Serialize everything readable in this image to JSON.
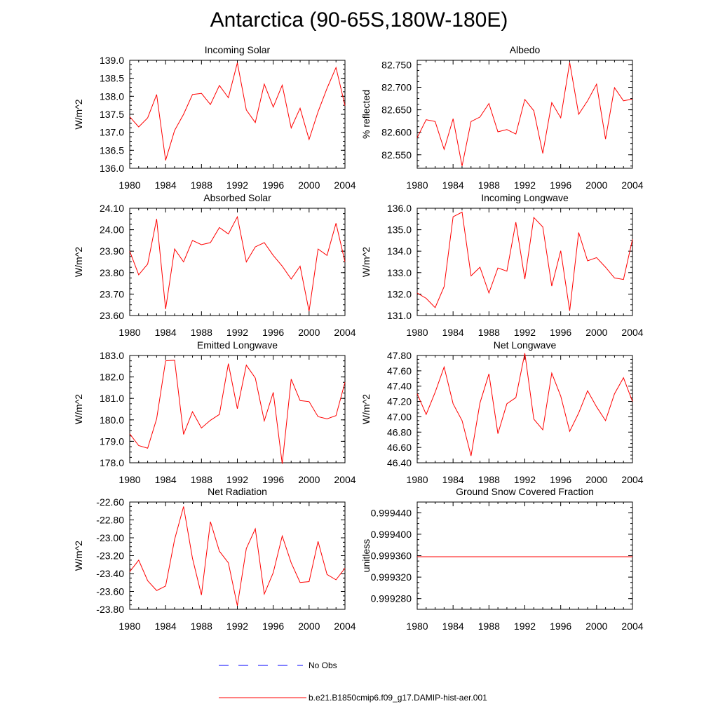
{
  "title": "Antarctica (90-65S,180W-180E)",
  "colors": {
    "model": "#ff0000",
    "obs": "#0000ff",
    "axis": "#000000"
  },
  "legend": {
    "obs_label": "No Obs",
    "model_label": "b.e21.B1850cmip6.f09_g17.DAMIP-hist-aer.001"
  },
  "chart_data": [
    {
      "type": "line",
      "title": "Incoming Solar",
      "xlabel": "",
      "ylabel": "W/m^2",
      "xlim": [
        1980,
        2004
      ],
      "ylim": [
        136.0,
        139.0
      ],
      "xticks": [
        1980,
        1984,
        1988,
        1992,
        1996,
        2000,
        2004
      ],
      "yticks": [
        136.0,
        136.5,
        137.0,
        137.5,
        138.0,
        138.5,
        139.0
      ],
      "ydec": 1,
      "x": [
        1980,
        1981,
        1982,
        1983,
        1984,
        1985,
        1986,
        1987,
        1988,
        1989,
        1990,
        1991,
        1992,
        1993,
        1994,
        1995,
        1996,
        1997,
        1998,
        1999,
        2000,
        2001,
        2002,
        2003,
        2004
      ],
      "values": [
        137.43,
        137.15,
        137.4,
        138.05,
        136.22,
        137.05,
        137.5,
        138.05,
        138.08,
        137.77,
        138.3,
        137.96,
        138.93,
        137.62,
        137.27,
        138.34,
        137.7,
        138.31,
        137.12,
        137.67,
        136.8,
        137.57,
        138.22,
        138.8,
        137.74
      ]
    },
    {
      "type": "line",
      "title": "Albedo",
      "xlabel": "",
      "ylabel": "% reflected",
      "xlim": [
        1980,
        2004
      ],
      "ylim": [
        82.52,
        82.76
      ],
      "xticks": [
        1980,
        1984,
        1988,
        1992,
        1996,
        2000,
        2004
      ],
      "yticks": [
        82.55,
        82.6,
        82.65,
        82.7,
        82.75
      ],
      "ydec": 3,
      "x": [
        1980,
        1981,
        1982,
        1983,
        1984,
        1985,
        1986,
        1987,
        1988,
        1989,
        1990,
        1991,
        1992,
        1993,
        1994,
        1995,
        1996,
        1997,
        1998,
        1999,
        2000,
        2001,
        2002,
        2003,
        2004
      ],
      "values": [
        82.588,
        82.628,
        82.624,
        82.562,
        82.63,
        82.525,
        82.624,
        82.634,
        82.664,
        82.601,
        82.606,
        82.596,
        82.673,
        82.648,
        82.553,
        82.666,
        82.632,
        82.755,
        82.64,
        82.67,
        82.707,
        82.585,
        82.699,
        82.67,
        82.674
      ]
    },
    {
      "type": "line",
      "title": "Absorbed Solar",
      "xlabel": "",
      "ylabel": "W/m^2",
      "xlim": [
        1980,
        2004
      ],
      "ylim": [
        23.6,
        24.1
      ],
      "xticks": [
        1980,
        1984,
        1988,
        1992,
        1996,
        2000,
        2004
      ],
      "yticks": [
        23.6,
        23.7,
        23.8,
        23.9,
        24.0,
        24.1
      ],
      "ydec": 2,
      "x": [
        1980,
        1981,
        1982,
        1983,
        1984,
        1985,
        1986,
        1987,
        1988,
        1989,
        1990,
        1991,
        1992,
        1993,
        1994,
        1995,
        1996,
        1997,
        1998,
        1999,
        2000,
        2001,
        2002,
        2003,
        2004
      ],
      "values": [
        23.9,
        23.79,
        23.84,
        24.05,
        23.63,
        23.91,
        23.85,
        23.95,
        23.93,
        23.94,
        24.01,
        23.98,
        24.06,
        23.85,
        23.92,
        23.94,
        23.88,
        23.83,
        23.77,
        23.83,
        23.62,
        23.91,
        23.88,
        24.03,
        23.85
      ]
    },
    {
      "type": "line",
      "title": "Incoming Longwave",
      "xlabel": "",
      "ylabel": "W/m^2",
      "xlim": [
        1980,
        2004
      ],
      "ylim": [
        131.0,
        136.0
      ],
      "xticks": [
        1980,
        1984,
        1988,
        1992,
        1996,
        2000,
        2004
      ],
      "yticks": [
        131.0,
        132.0,
        133.0,
        134.0,
        135.0,
        136.0
      ],
      "ydec": 1,
      "x": [
        1980,
        1981,
        1982,
        1983,
        1984,
        1985,
        1986,
        1987,
        1988,
        1989,
        1990,
        1991,
        1992,
        1993,
        1994,
        1995,
        1996,
        1997,
        1998,
        1999,
        2000,
        2001,
        2002,
        2003,
        2004
      ],
      "values": [
        132.05,
        131.8,
        131.37,
        132.35,
        135.6,
        135.82,
        132.85,
        133.25,
        132.05,
        133.22,
        133.07,
        135.35,
        132.7,
        135.57,
        135.13,
        132.37,
        134.02,
        131.22,
        134.87,
        133.55,
        133.7,
        133.25,
        132.75,
        132.68,
        134.55
      ]
    },
    {
      "type": "line",
      "title": "Emitted Longwave",
      "xlabel": "",
      "ylabel": "W/m^2",
      "xlim": [
        1980,
        2004
      ],
      "ylim": [
        178.0,
        183.0
      ],
      "xticks": [
        1980,
        1984,
        1988,
        1992,
        1996,
        2000,
        2004
      ],
      "yticks": [
        178.0,
        179.0,
        180.0,
        181.0,
        182.0,
        183.0
      ],
      "ydec": 1,
      "x": [
        1980,
        1981,
        1982,
        1983,
        1984,
        1985,
        1986,
        1987,
        1988,
        1989,
        1990,
        1991,
        1992,
        1993,
        1994,
        1995,
        1996,
        1997,
        1998,
        1999,
        2000,
        2001,
        2002,
        2003,
        2004
      ],
      "values": [
        179.35,
        178.8,
        178.68,
        180.05,
        182.75,
        182.78,
        179.32,
        180.38,
        179.62,
        179.98,
        180.25,
        182.62,
        180.52,
        182.55,
        181.95,
        179.95,
        181.28,
        177.95,
        181.9,
        180.9,
        180.85,
        180.15,
        180.05,
        180.2,
        181.75
      ]
    },
    {
      "type": "line",
      "title": "Net Longwave",
      "xlabel": "",
      "ylabel": "W/m^2",
      "xlim": [
        1980,
        2004
      ],
      "ylim": [
        46.4,
        47.8
      ],
      "xticks": [
        1980,
        1984,
        1988,
        1992,
        1996,
        2000,
        2004
      ],
      "yticks": [
        46.4,
        46.6,
        46.8,
        47.0,
        47.2,
        47.4,
        47.6,
        47.8
      ],
      "ydec": 2,
      "x": [
        1980,
        1981,
        1982,
        1983,
        1984,
        1985,
        1986,
        1987,
        1988,
        1989,
        1990,
        1991,
        1992,
        1993,
        1994,
        1995,
        1996,
        1997,
        1998,
        1999,
        2000,
        2001,
        2002,
        2003,
        2004
      ],
      "values": [
        47.3,
        47.03,
        47.32,
        47.65,
        47.17,
        46.95,
        46.49,
        47.18,
        47.56,
        46.78,
        47.17,
        47.25,
        47.83,
        46.97,
        46.83,
        47.57,
        47.27,
        46.81,
        47.05,
        47.34,
        47.13,
        46.95,
        47.3,
        47.51,
        47.2
      ]
    },
    {
      "type": "line",
      "title": "Net Radiation",
      "xlabel": "",
      "ylabel": "W/m^2",
      "xlim": [
        1980,
        2004
      ],
      "ylim": [
        -23.8,
        -22.6
      ],
      "xticks": [
        1980,
        1984,
        1988,
        1992,
        1996,
        2000,
        2004
      ],
      "yticks": [
        -23.8,
        -23.6,
        -23.4,
        -23.2,
        -23.0,
        -22.8,
        -22.6
      ],
      "ydec": 2,
      "x": [
        1980,
        1981,
        1982,
        1983,
        1984,
        1985,
        1986,
        1987,
        1988,
        1989,
        1990,
        1991,
        1992,
        1993,
        1994,
        1995,
        1996,
        1997,
        1998,
        1999,
        2000,
        2001,
        2002,
        2003,
        2004
      ],
      "values": [
        -23.38,
        -23.25,
        -23.48,
        -23.59,
        -23.54,
        -23.02,
        -22.65,
        -23.23,
        -23.64,
        -22.82,
        -23.15,
        -23.28,
        -23.76,
        -23.12,
        -22.9,
        -23.63,
        -23.39,
        -22.98,
        -23.28,
        -23.5,
        -23.49,
        -23.04,
        -23.41,
        -23.47,
        -23.34
      ]
    },
    {
      "type": "line",
      "title": "Ground Snow Covered Fraction",
      "xlabel": "",
      "ylabel": "unitless",
      "xlim": [
        1980,
        2004
      ],
      "ylim": [
        0.99926,
        0.99946
      ],
      "xticks": [
        1980,
        1984,
        1988,
        1992,
        1996,
        2000,
        2004
      ],
      "yticks": [
        0.99928,
        0.99932,
        0.99936,
        0.9994,
        0.99944
      ],
      "ydec": 6,
      "x": [
        1980,
        1981,
        1982,
        1983,
        1984,
        1985,
        1986,
        1987,
        1988,
        1989,
        1990,
        1991,
        1992,
        1993,
        1994,
        1995,
        1996,
        1997,
        1998,
        1999,
        2000,
        2001,
        2002,
        2003,
        2004
      ],
      "values": [
        0.999358,
        0.999358,
        0.999358,
        0.999358,
        0.999358,
        0.999358,
        0.999358,
        0.999358,
        0.999358,
        0.999358,
        0.999358,
        0.999358,
        0.999358,
        0.999358,
        0.999358,
        0.999358,
        0.999358,
        0.999358,
        0.999358,
        0.999358,
        0.999358,
        0.999358,
        0.999358,
        0.999358,
        0.999358
      ]
    }
  ]
}
